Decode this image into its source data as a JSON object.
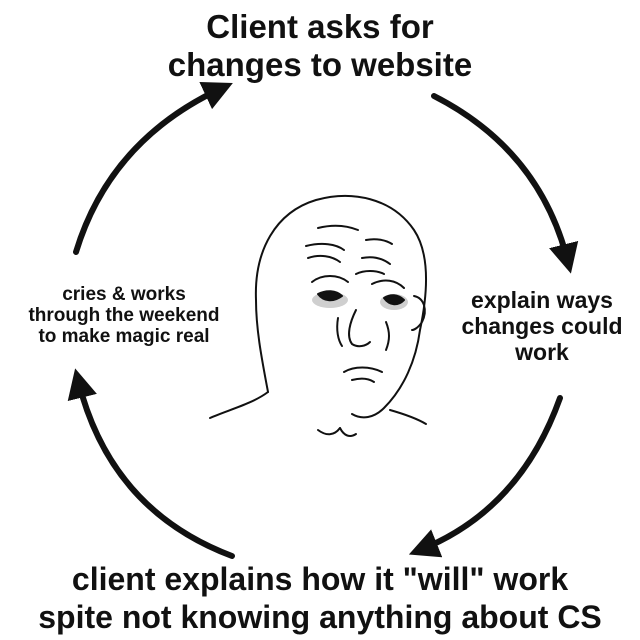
{
  "meme": {
    "top_caption": [
      "Client asks for",
      "changes to website"
    ],
    "right_caption": [
      "explain ways",
      "changes could",
      "work"
    ],
    "bottom_caption": [
      "client explains how it \"will\" work",
      "spite not knowing anything about CS"
    ],
    "left_caption": [
      "cries & works",
      "through the weekend",
      "to make magic real"
    ]
  },
  "colors": {
    "ink": "#111111",
    "background": "#ffffff",
    "eye_shadow": "#cfcfcf"
  },
  "icons": {
    "center": "sad-wojak-face-icon",
    "arrows": "cycle-arrow-icon"
  }
}
